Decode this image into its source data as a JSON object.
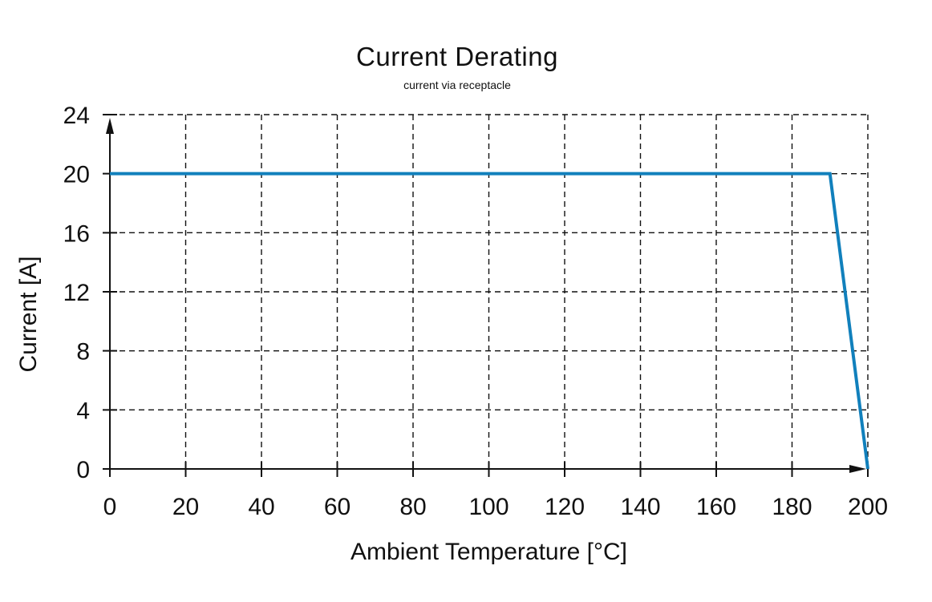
{
  "page": {
    "background": "#ffffff"
  },
  "chart_data": {
    "type": "line",
    "title": "Current Derating",
    "subtitle": "current via receptacle",
    "xlabel": "Ambient Temperature [°C]",
    "ylabel": "Current [A]",
    "xlim": [
      0,
      200
    ],
    "ylim": [
      0,
      24
    ],
    "x_ticks": [
      0,
      20,
      40,
      60,
      80,
      100,
      120,
      140,
      160,
      180,
      200
    ],
    "y_ticks": [
      0,
      4,
      8,
      12,
      16,
      20,
      24
    ],
    "grid": "dashed",
    "legend": "none",
    "axis_color": "#111111",
    "grid_color": "#111111",
    "series": [
      {
        "name": "current via receptacle",
        "color": "#1180bc",
        "points": [
          [
            0,
            20
          ],
          [
            190,
            20
          ],
          [
            200,
            0
          ]
        ]
      }
    ]
  }
}
